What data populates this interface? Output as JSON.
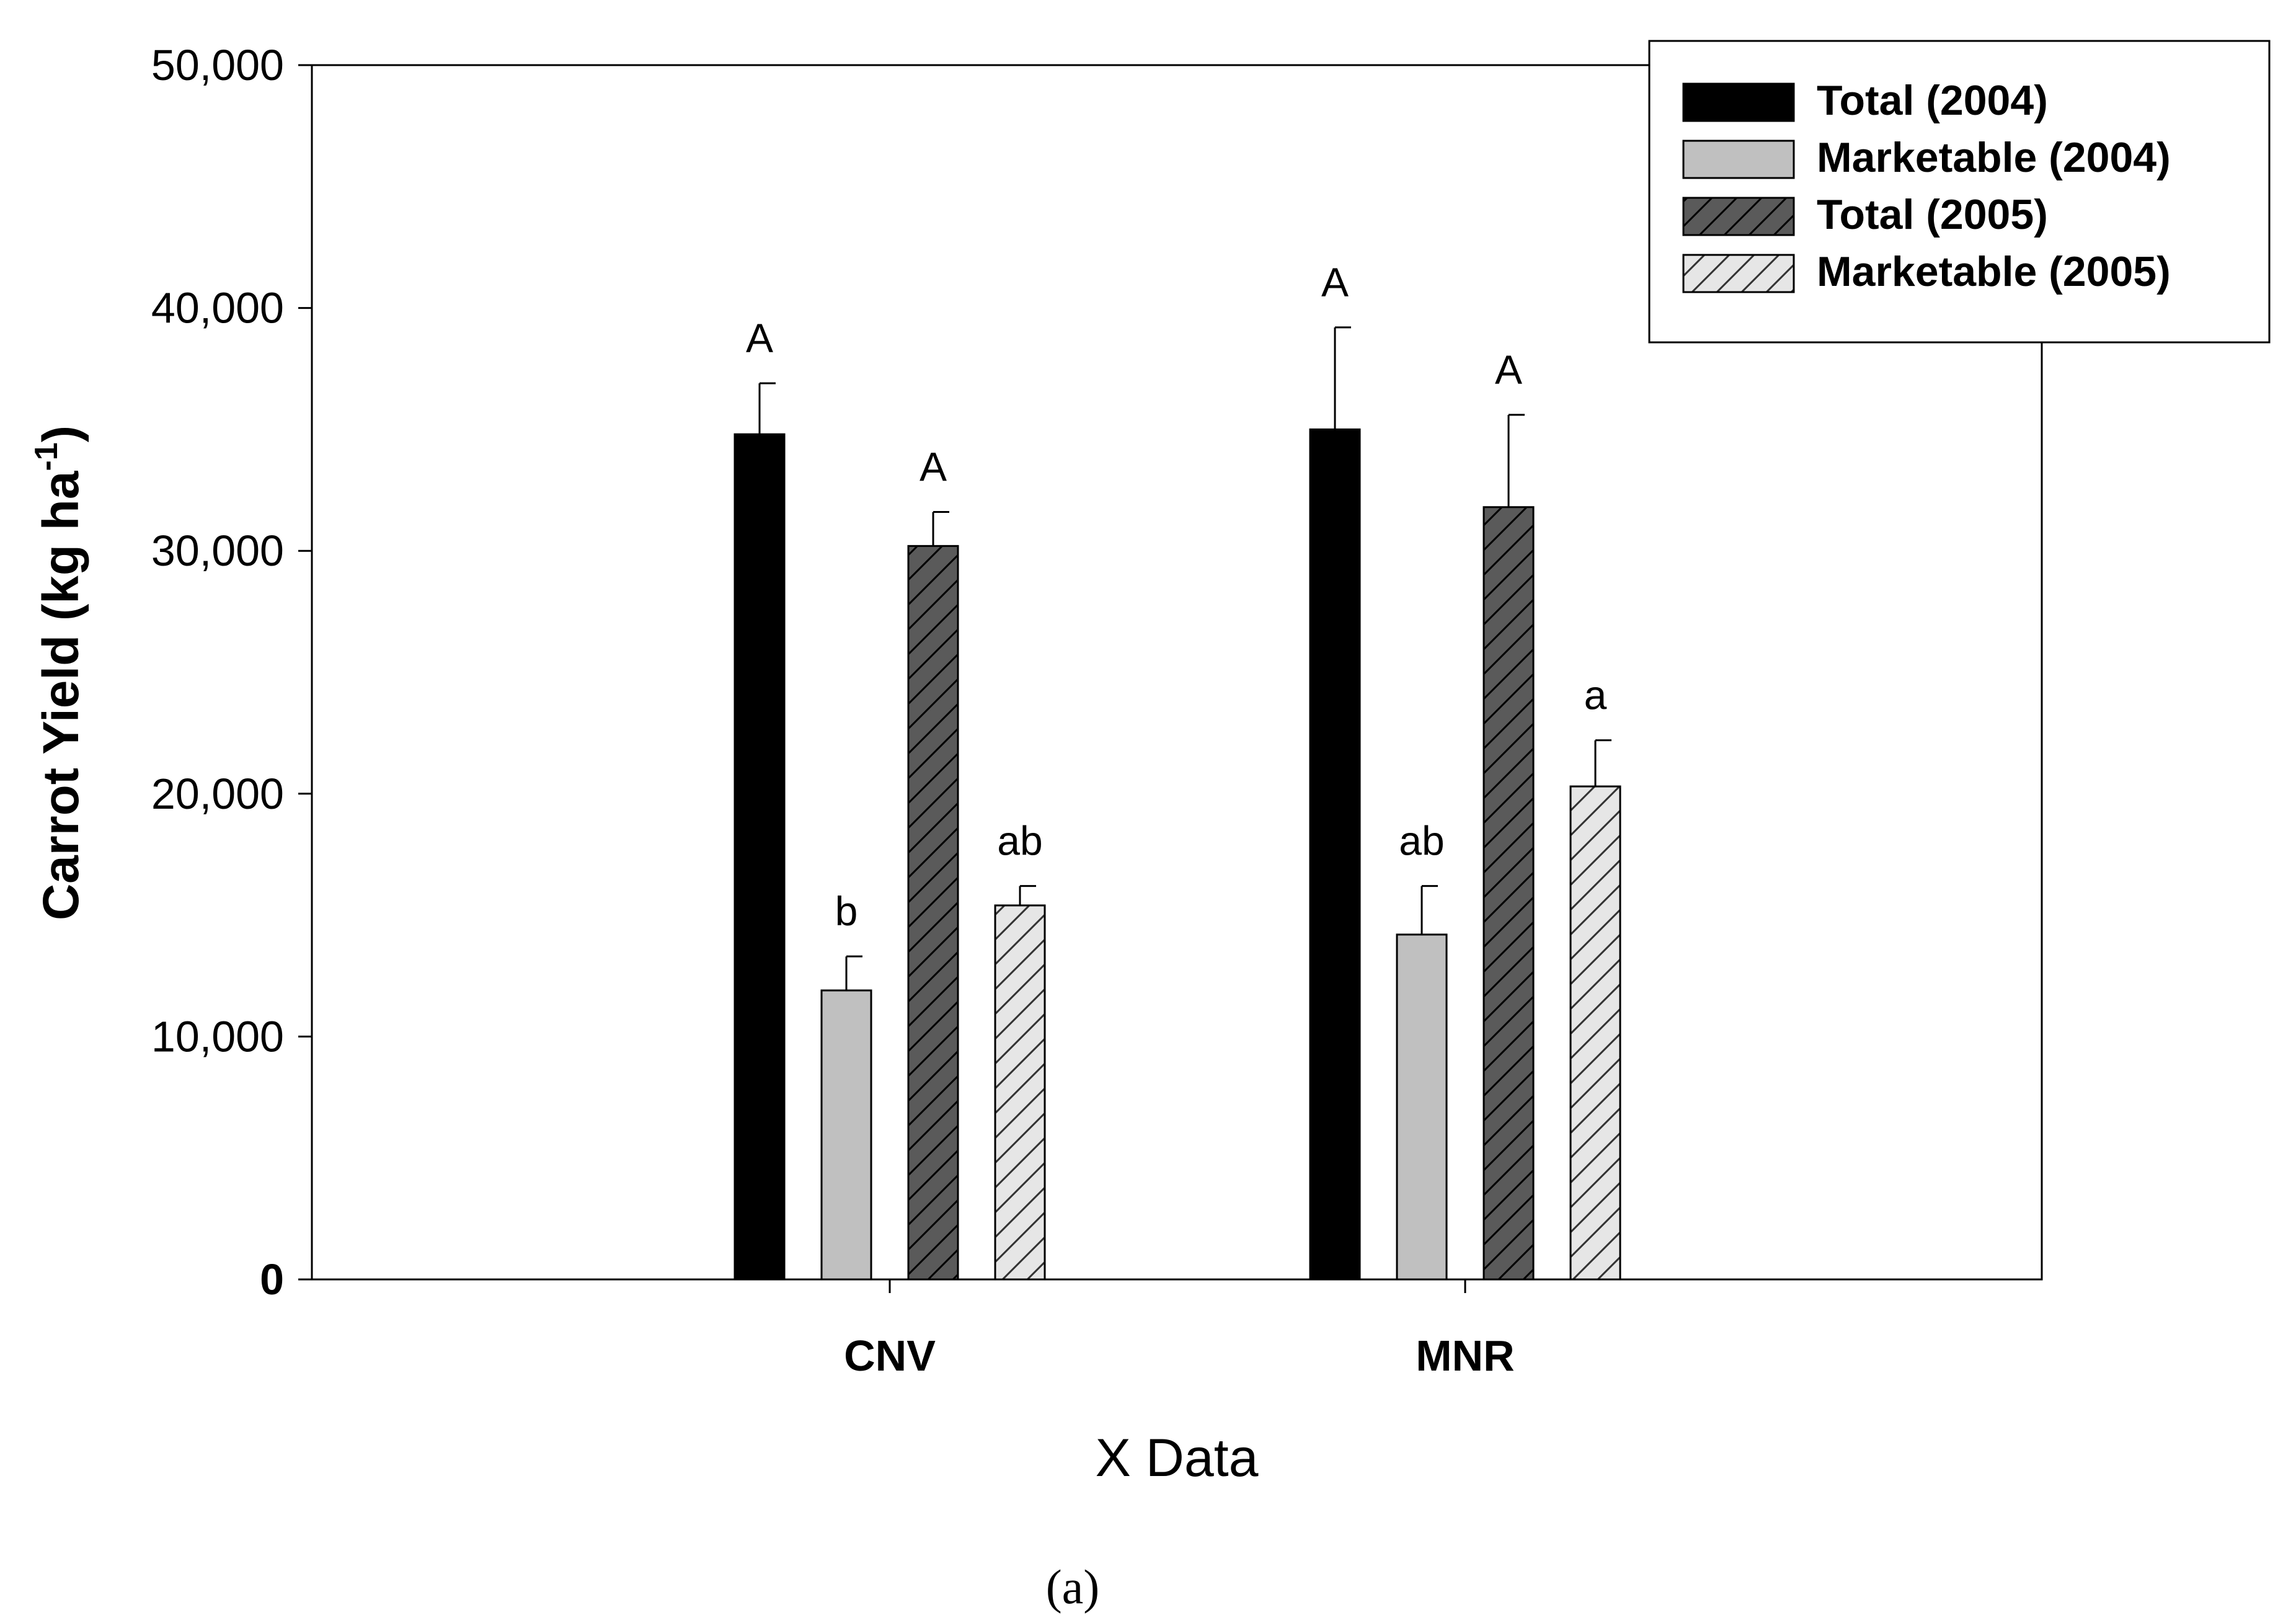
{
  "chart_data": {
    "type": "bar",
    "categories": [
      "CNV",
      "MNR"
    ],
    "series": [
      {
        "name": "Total (2004)",
        "fill": "#000000",
        "hatch": false,
        "values": [
          34800,
          35000
        ],
        "errors": [
          2100,
          4200
        ],
        "letters": [
          "A",
          "A"
        ]
      },
      {
        "name": "Marketable (2004)",
        "fill": "#c0c0c0",
        "hatch": false,
        "values": [
          11900,
          14200
        ],
        "errors": [
          1400,
          2000
        ],
        "letters": [
          "b",
          "ab"
        ]
      },
      {
        "name": "Total (2005)",
        "fill": "#5a5a5a",
        "hatch": true,
        "values": [
          30200,
          31800
        ],
        "errors": [
          1400,
          3800
        ],
        "letters": [
          "A",
          "A"
        ]
      },
      {
        "name": "Marketable (2005)",
        "fill": "#e6e6e6",
        "hatch": true,
        "values": [
          15400,
          20300
        ],
        "errors": [
          800,
          1900
        ],
        "letters": [
          "ab",
          "a"
        ]
      }
    ],
    "ylim": [
      0,
      50000
    ],
    "yticks": [
      "0",
      "10,000",
      "20,000",
      "30,000",
      "40,000",
      "50,000"
    ],
    "ylabel_main": "Carrot Yield (kg ha",
    "ylabel_sup": "-1",
    "ylabel_close": ")",
    "xlabel": "X Data",
    "legend_position": "top-right",
    "grid": false
  },
  "caption": "(a)"
}
